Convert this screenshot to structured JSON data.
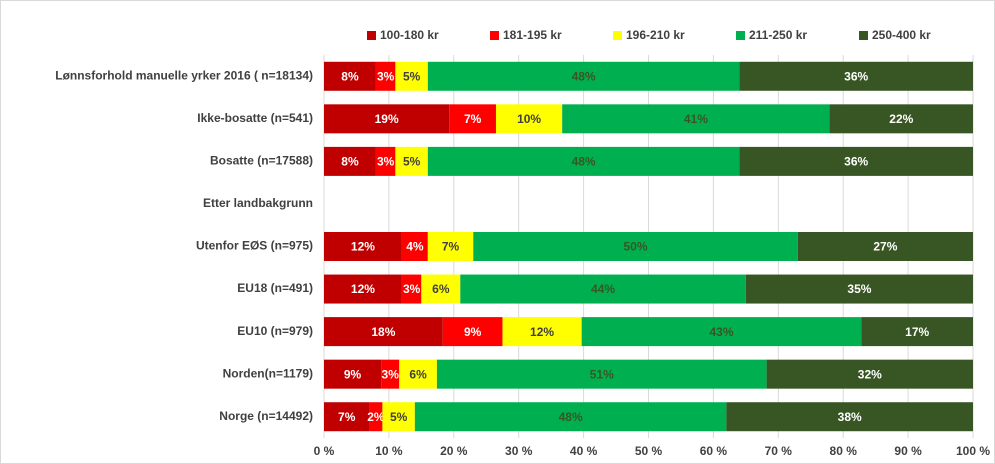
{
  "chart_data": {
    "type": "stacked-bar-horizontal",
    "categories": [
      "Lønnsforhold manuelle yrker 2016 ( n=18134)",
      "Ikke-bosatte (n=541)",
      "Bosatte (n=17588)",
      "Etter landbakgrunn",
      "Utenfor EØS (n=975)",
      "EU18 (n=491)",
      "EU10 (n=979)",
      "Norden(n=1179)",
      "Norge (n=14492)"
    ],
    "series": [
      {
        "name": "100-180 kr",
        "color": "#c00000",
        "values": [
          8,
          19.3,
          8,
          null,
          12,
          12,
          18.3,
          8.8,
          7
        ],
        "value_labels": [
          "8%",
          "19%",
          "8%",
          null,
          "12%",
          "12%",
          "18%",
          "9%",
          "7%"
        ]
      },
      {
        "name": "181-195 kr",
        "color": "#ff0000",
        "values": [
          3,
          7.2,
          3,
          null,
          4,
          3,
          9.2,
          2.8,
          2
        ],
        "value_labels": [
          "3%",
          "7%",
          "3%",
          null,
          "4%",
          "3%",
          "9%",
          "3%",
          "2%"
        ]
      },
      {
        "name": "196-210 kr",
        "color": "#ffff00",
        "values": [
          5,
          10.2,
          5,
          null,
          7,
          6,
          12.2,
          5.8,
          5
        ],
        "value_labels": [
          "5%",
          "10%",
          "5%",
          null,
          "7%",
          "6%",
          "12%",
          "6%",
          "5%"
        ]
      },
      {
        "name": "211-250 kr",
        "color": "#00b050",
        "values": [
          48,
          41.2,
          48,
          null,
          50,
          44,
          43.1,
          50.8,
          48
        ],
        "value_labels": [
          "48%",
          "41%",
          "48%",
          null,
          "50%",
          "44%",
          "43%",
          "51%",
          "48%"
        ]
      },
      {
        "name": "250-400 kr",
        "color": "#375623",
        "values": [
          36,
          22.1,
          36,
          null,
          27,
          35,
          17.2,
          31.8,
          38
        ],
        "value_labels": [
          "36%",
          "22%",
          "36%",
          null,
          "27%",
          "35%",
          "17%",
          "32%",
          "38%"
        ]
      }
    ],
    "xlim": [
      0,
      100
    ],
    "xticks": [
      {
        "value": 0,
        "label": "0 %"
      },
      {
        "value": 10,
        "label": "10 %"
      },
      {
        "value": 20,
        "label": "20 %"
      },
      {
        "value": 30,
        "label": "30 %"
      },
      {
        "value": 40,
        "label": "40 %"
      },
      {
        "value": 50,
        "label": "50 %"
      },
      {
        "value": 60,
        "label": "60 %"
      },
      {
        "value": 70,
        "label": "70 %"
      },
      {
        "value": 80,
        "label": "80 %"
      },
      {
        "value": 90,
        "label": "90 %"
      },
      {
        "value": 100,
        "label": "100 %"
      }
    ],
    "grid": true,
    "legend": "top"
  }
}
